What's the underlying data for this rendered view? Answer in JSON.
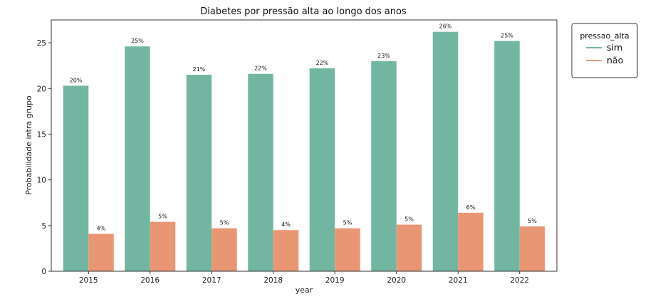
{
  "chart_data": {
    "type": "bar",
    "title": "Diabetes por pressão alta ao longo dos anos",
    "xlabel": "year",
    "ylabel": "Probabilidade intra grupo",
    "categories": [
      "2015",
      "2016",
      "2017",
      "2018",
      "2019",
      "2020",
      "2021",
      "2022"
    ],
    "ylim": [
      0,
      27.5
    ],
    "yticks": [
      0,
      5,
      10,
      15,
      20,
      25
    ],
    "grid": false,
    "legend": {
      "title": "pressao_alta",
      "placement": "outside-right-top"
    },
    "series": [
      {
        "name": "sim",
        "color": "#72b6a1",
        "values": [
          20.3,
          24.6,
          21.5,
          21.6,
          22.2,
          23.0,
          26.2,
          25.2
        ],
        "labels": [
          "20%",
          "25%",
          "21%",
          "22%",
          "22%",
          "23%",
          "26%",
          "25%"
        ]
      },
      {
        "name": "não",
        "color": "#e99675",
        "values": [
          4.1,
          5.4,
          4.7,
          4.5,
          4.7,
          5.1,
          6.4,
          4.9
        ],
        "labels": [
          "4%",
          "5%",
          "5%",
          "4%",
          "5%",
          "5%",
          "6%",
          "5%"
        ]
      }
    ]
  }
}
